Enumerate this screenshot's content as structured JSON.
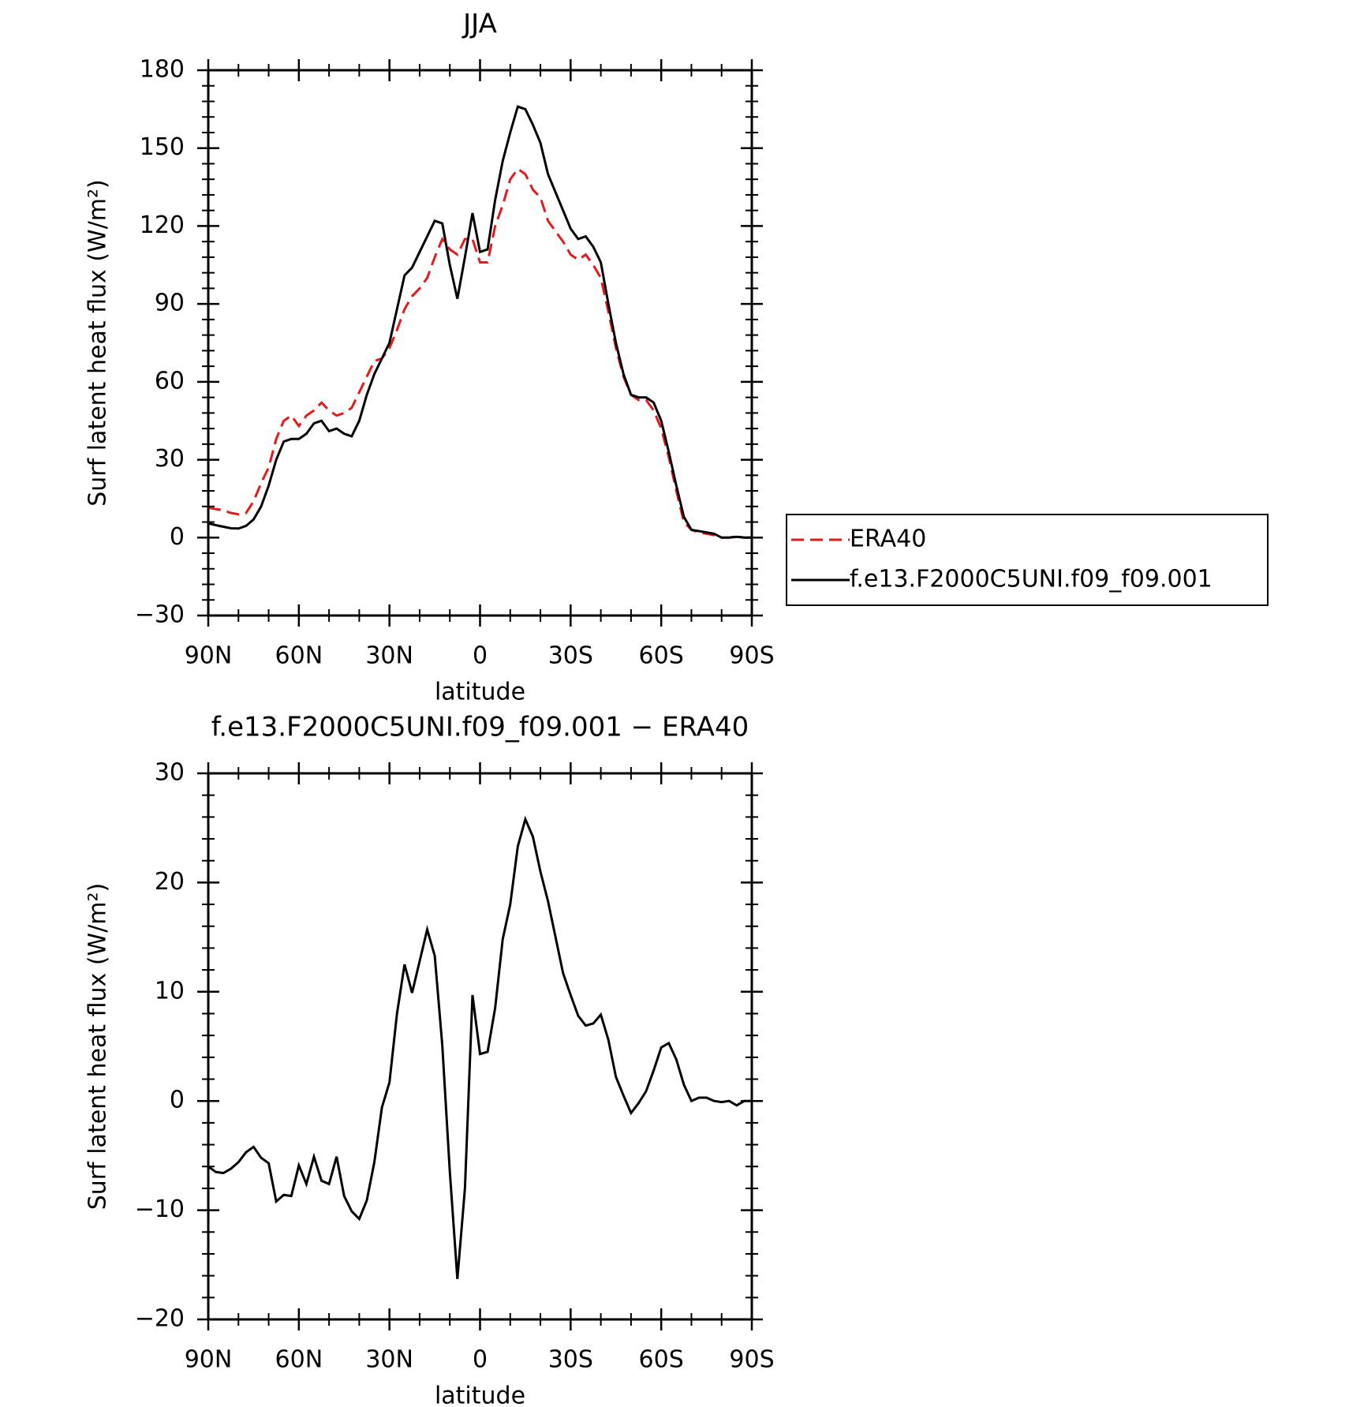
{
  "chart_data": [
    {
      "type": "line",
      "title": "JJA",
      "xlabel": "latitude",
      "ylabel": "Surf latent heat flux (W/m²)",
      "x": [
        90,
        87.5,
        85,
        82.5,
        80,
        77.5,
        75,
        72.5,
        70,
        67.5,
        65,
        62.5,
        60,
        57.5,
        55,
        52.5,
        50,
        47.5,
        45,
        42.5,
        40,
        37.5,
        35,
        32.5,
        30,
        27.5,
        25,
        22.5,
        20,
        17.5,
        15,
        12.5,
        10,
        7.5,
        5,
        2.5,
        0,
        -2.5,
        -5,
        -7.5,
        -10,
        -12.5,
        -15,
        -17.5,
        -20,
        -22.5,
        -25,
        -27.5,
        -30,
        -32.5,
        -35,
        -37.5,
        -40,
        -42.5,
        -45,
        -47.5,
        -50,
        -52.5,
        -55,
        -57.5,
        -60,
        -62.5,
        -65,
        -67.5,
        -70,
        -72.5,
        -75,
        -77.5,
        -80,
        -82.5,
        -85,
        -87.5,
        -90
      ],
      "series": [
        {
          "name": "ERA40",
          "color": "#e41a1c",
          "dash": "dashed",
          "values": [
            11.5,
            11,
            10.5,
            9.5,
            9,
            9.5,
            14,
            21,
            27,
            38,
            45,
            47,
            43,
            47,
            49,
            52,
            49,
            47,
            48,
            50,
            56,
            62,
            68,
            69,
            73,
            80,
            88,
            93,
            96,
            100,
            108,
            115,
            111,
            109,
            115,
            115,
            106,
            106,
            120,
            128,
            138,
            142,
            140,
            134,
            131,
            122,
            118,
            114,
            109,
            107,
            109,
            105,
            100,
            87,
            73,
            62,
            55,
            53,
            53,
            49,
            42,
            31,
            18,
            6,
            3,
            2,
            1.5,
            1,
            0,
            0,
            0.5,
            0,
            0
          ]
        },
        {
          "name": "f.e13.F2000C5UNI.f09_f09.001",
          "color": "#000000",
          "dash": "solid",
          "values": [
            5.5,
            4.8,
            4.2,
            3.6,
            3.5,
            4.5,
            7,
            12,
            20,
            30,
            37,
            38,
            38,
            40,
            44,
            45,
            41,
            42,
            40,
            39,
            45,
            55,
            63,
            69,
            75,
            88,
            101,
            104,
            110,
            116,
            122,
            121,
            105,
            92,
            108,
            125,
            110,
            111,
            130,
            145,
            156,
            166,
            165,
            159,
            152,
            140,
            133,
            126,
            119,
            115,
            116,
            112,
            106,
            90,
            75,
            63,
            55,
            54,
            54,
            52,
            45,
            33,
            20,
            8,
            3,
            2.5,
            2,
            1.5,
            0,
            0,
            0.3,
            0,
            0
          ]
        }
      ],
      "xlim": [
        90,
        -90
      ],
      "xticks": [
        {
          "value": 90,
          "label": "90N"
        },
        {
          "value": 60,
          "label": "60N"
        },
        {
          "value": 30,
          "label": "30N"
        },
        0,
        {
          "value": -30,
          "label": "30S"
        },
        {
          "value": -60,
          "label": "60S"
        },
        {
          "value": -90,
          "label": "90S"
        }
      ],
      "ylim": [
        -30,
        180
      ],
      "yticks": [
        {
          "value": -30,
          "label": "−30"
        },
        0,
        30,
        60,
        90,
        120,
        150,
        180
      ],
      "legend": "outside-right"
    },
    {
      "type": "line",
      "title": "f.e13.F2000C5UNI.f09_f09.001 − ERA40",
      "xlabel": "latitude",
      "ylabel": "Surf latent heat flux (W/m²)",
      "x": [
        90,
        87.5,
        85,
        82.5,
        80,
        77.5,
        75,
        72.5,
        70,
        67.5,
        65,
        62.5,
        60,
        57.5,
        55,
        52.5,
        50,
        47.5,
        45,
        42.5,
        40,
        37.5,
        35,
        32.5,
        30,
        27.5,
        25,
        22.5,
        20,
        17.5,
        15,
        12.5,
        10,
        7.5,
        5,
        2.5,
        0,
        -2.5,
        -5,
        -7.5,
        -10,
        -12.5,
        -15,
        -17.5,
        -20,
        -22.5,
        -25,
        -27.5,
        -30,
        -32.5,
        -35,
        -37.5,
        -40,
        -42.5,
        -45,
        -47.5,
        -50,
        -52.5,
        -55,
        -57.5,
        -60,
        -62.5,
        -65,
        -67.5,
        -70,
        -72.5,
        -75,
        -77.5,
        -80,
        -82.5,
        -85,
        -87.5,
        -90
      ],
      "series": [
        {
          "color": "#000000",
          "dash": "solid",
          "values": [
            -6,
            -6.5,
            -6.6,
            -6.2,
            -5.6,
            -4.7,
            -4.2,
            -5.2,
            -5.7,
            -9.2,
            -8.6,
            -8.7,
            -5.9,
            -7.6,
            -5.1,
            -7.3,
            -7.6,
            -5.1,
            -8.7,
            -10.1,
            -10.8,
            -9.1,
            -5.6,
            -0.6,
            1.7,
            8,
            12.5,
            9.9,
            12.8,
            15.7,
            13.3,
            5.1,
            -6.5,
            -16.3,
            -8,
            9.7,
            4.3,
            4.5,
            8.5,
            14.8,
            18,
            23.3,
            25.8,
            24.2,
            21,
            18.3,
            15,
            11.7,
            9.7,
            7.8,
            6.9,
            7.1,
            7.9,
            5.6,
            2.2,
            0.5,
            -1.1,
            -0.2,
            0.9,
            2.8,
            4.9,
            5.3,
            3.8,
            1.5,
            0,
            0.3,
            0.3,
            0,
            -0.1,
            0,
            -0.4,
            0,
            0
          ]
        }
      ],
      "xlim": [
        90,
        -90
      ],
      "xticks": [
        {
          "value": 90,
          "label": "90N"
        },
        {
          "value": 60,
          "label": "60N"
        },
        {
          "value": 30,
          "label": "30N"
        },
        0,
        {
          "value": -30,
          "label": "30S"
        },
        {
          "value": -60,
          "label": "60S"
        },
        {
          "value": -90,
          "label": "90S"
        }
      ],
      "ylim": [
        -20,
        30
      ],
      "yticks": [
        {
          "value": -20,
          "label": "−20"
        },
        {
          "value": -10,
          "label": "−10"
        },
        0,
        10,
        20,
        30
      ]
    }
  ]
}
